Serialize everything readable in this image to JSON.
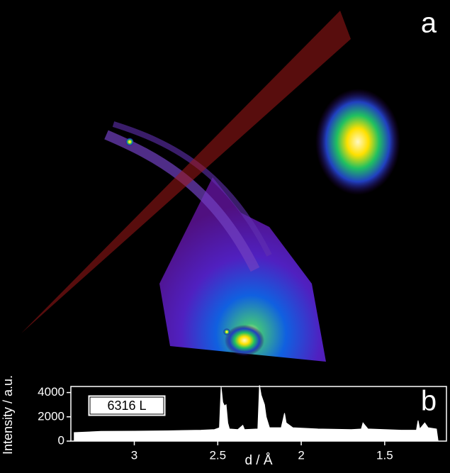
{
  "panel_a": {
    "label": "a"
  },
  "chart_data": {
    "type": "line",
    "label": "b",
    "annotation": "6316 L",
    "x_label": "d / Å",
    "y_label": "Intensity / a.u.",
    "x": [
      3.36,
      3.2,
      3.0,
      2.8,
      2.6,
      2.52,
      2.49,
      2.48,
      2.47,
      2.46,
      2.45,
      2.44,
      2.43,
      2.38,
      2.35,
      2.34,
      2.26,
      2.25,
      2.24,
      2.22,
      2.21,
      2.19,
      2.12,
      2.1,
      2.09,
      2.05,
      1.9,
      1.7,
      1.64,
      1.63,
      1.6,
      1.4,
      1.31,
      1.3,
      1.29,
      1.26,
      1.24,
      1.19,
      1.18
    ],
    "series": [
      {
        "color": "#ffffff",
        "values": [
          700,
          800,
          820,
          850,
          900,
          950,
          1100,
          4500,
          3200,
          2900,
          3000,
          1500,
          1000,
          950,
          1300,
          950,
          1000,
          4600,
          3800,
          3000,
          2000,
          1100,
          1100,
          2300,
          1500,
          1100,
          1000,
          950,
          1000,
          1500,
          1000,
          900,
          900,
          1700,
          1000,
          1500,
          1100,
          1000,
          0
        ]
      }
    ],
    "xlim": [
      3.38,
      1.13
    ],
    "xticks": [
      3.0,
      2.5,
      2.0,
      1.5
    ],
    "ylim": [
      0,
      4500
    ],
    "yticks": [
      0,
      2000,
      4000
    ]
  }
}
